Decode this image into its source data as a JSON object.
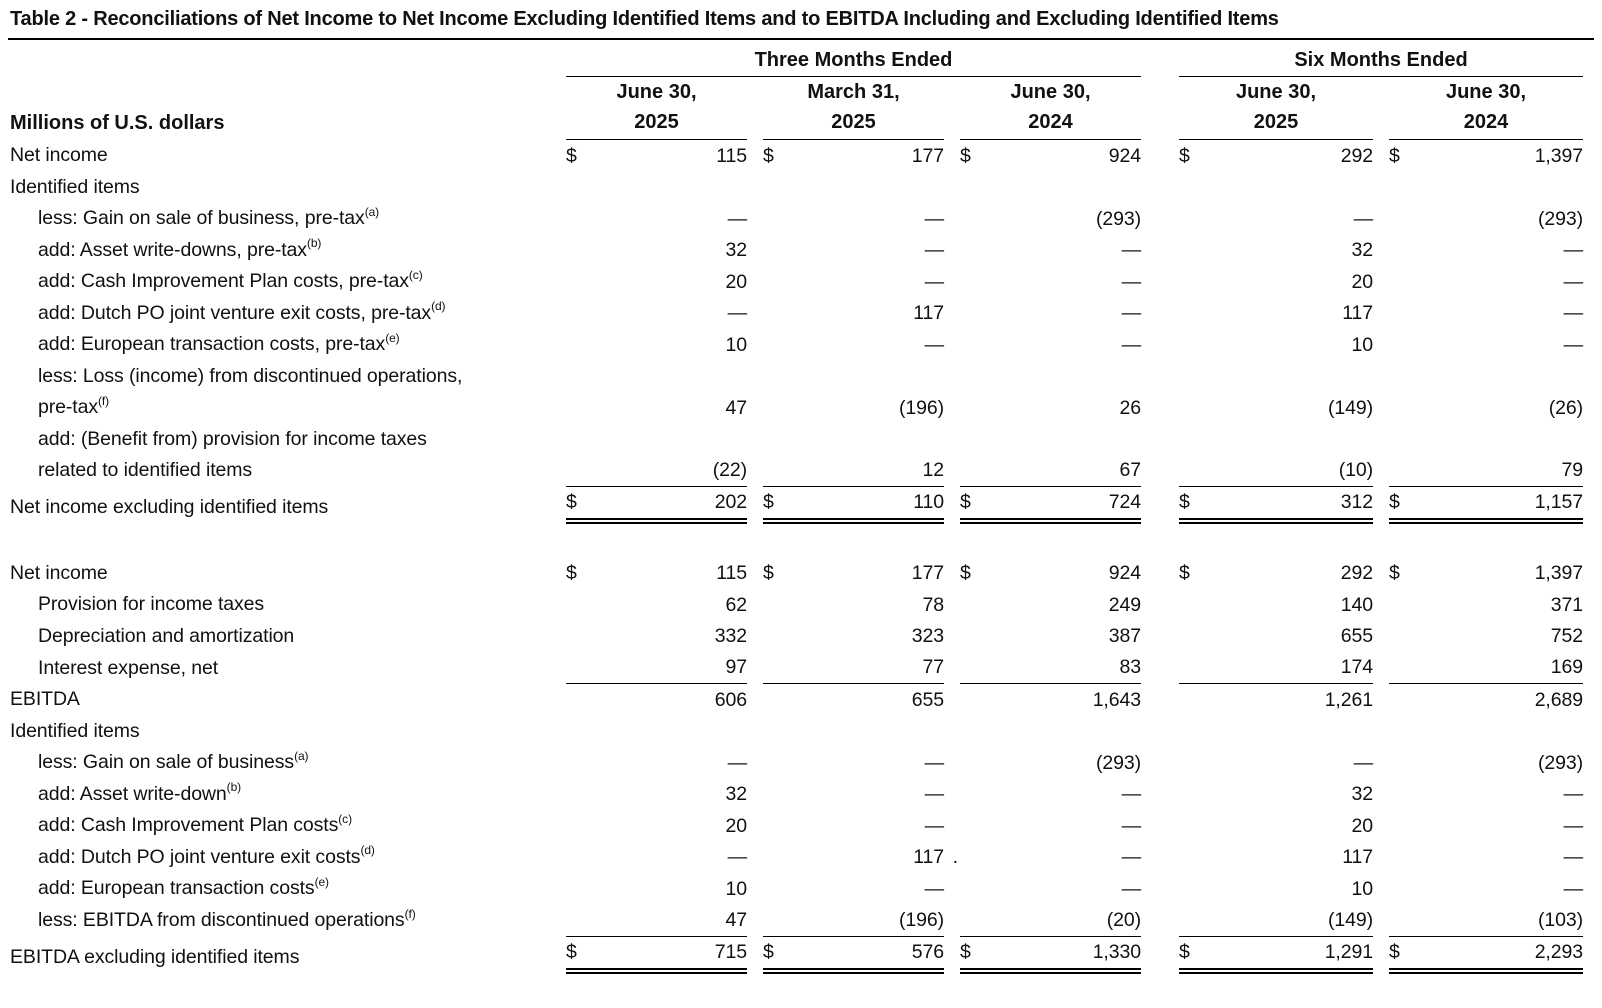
{
  "title": "Table 2 - Reconciliations of Net Income to Net Income Excluding Identified Items and to EBITDA Including and Excluding Identified Items",
  "row_header_label": "Millions of U.S. dollars",
  "currency_symbol": "$",
  "em_dash": "—",
  "column_groups": [
    {
      "label": "Three Months Ended",
      "span": 3
    },
    {
      "label": "Six Months Ended",
      "span": 2
    }
  ],
  "columns": [
    {
      "line1": "June 30,",
      "line2": "2025"
    },
    {
      "line1": "March 31,",
      "line2": "2025"
    },
    {
      "line1": "June 30,",
      "line2": "2024"
    },
    {
      "line1": "June 30,",
      "line2": "2025"
    },
    {
      "line1": "June 30,",
      "line2": "2024"
    }
  ],
  "sections": [
    {
      "rows": [
        {
          "label": "Net income",
          "dollar": true,
          "values": [
            "115",
            "177",
            "924",
            "292",
            "1,397"
          ]
        },
        {
          "label": "Identified items",
          "values": null
        },
        {
          "label": "less: Gain on sale of business, pre-tax",
          "sup": "(a)",
          "indent": true,
          "values": [
            "—",
            "—",
            "(293)",
            "—",
            "(293)"
          ]
        },
        {
          "label": "add: Asset write-downs, pre-tax",
          "sup": "(b)",
          "indent": true,
          "values": [
            "32",
            "—",
            "—",
            "32",
            "—"
          ]
        },
        {
          "label": "add: Cash Improvement Plan costs, pre-tax",
          "sup": "(c)",
          "indent": true,
          "values": [
            "20",
            "—",
            "—",
            "20",
            "—"
          ]
        },
        {
          "label": "add: Dutch PO joint venture exit costs, pre-tax",
          "sup": "(d)",
          "indent": true,
          "values": [
            "—",
            "117",
            "—",
            "117",
            "—"
          ]
        },
        {
          "label": "add: European transaction costs, pre-tax",
          "sup": "(e)",
          "indent": true,
          "values": [
            "10",
            "—",
            "—",
            "10",
            "—"
          ]
        },
        {
          "label": "less: Loss (income) from discontinued operations,",
          "label2": "pre-tax",
          "sup2": "(f)",
          "indent": true,
          "values": [
            "47",
            "(196)",
            "26",
            "(149)",
            "(26)"
          ]
        },
        {
          "label": "add: (Benefit from) provision for income taxes",
          "label2": "related to identified items",
          "indent": true,
          "values": [
            "(22)",
            "12",
            "67",
            "(10)",
            "79"
          ],
          "underline": "single"
        },
        {
          "label": "Net income excluding identified items",
          "dollar": true,
          "values": [
            "202",
            "110",
            "724",
            "312",
            "1,157"
          ],
          "underline": "double"
        }
      ]
    },
    {
      "rows": [
        {
          "label": "Net income",
          "dollar": true,
          "values": [
            "115",
            "177",
            "924",
            "292",
            "1,397"
          ]
        },
        {
          "label": "Provision for income taxes",
          "indent": true,
          "values": [
            "62",
            "78",
            "249",
            "140",
            "371"
          ]
        },
        {
          "label": "Depreciation and amortization",
          "indent": true,
          "values": [
            "332",
            "323",
            "387",
            "655",
            "752"
          ]
        },
        {
          "label": "Interest expense, net",
          "indent": true,
          "values": [
            "97",
            "77",
            "83",
            "174",
            "169"
          ],
          "underline": "single"
        },
        {
          "label": "EBITDA",
          "values": [
            "606",
            "655",
            "1,643",
            "1,261",
            "2,689"
          ]
        },
        {
          "label": "Identified items",
          "values": null
        },
        {
          "label": "less: Gain on sale of business",
          "sup": "(a)",
          "indent": true,
          "values": [
            "—",
            "—",
            "(293)",
            "—",
            "(293)"
          ]
        },
        {
          "label": "add: Asset write-down",
          "sup": "(b)",
          "indent": true,
          "values": [
            "32",
            "—",
            "—",
            "32",
            "—"
          ]
        },
        {
          "label": "add: Cash Improvement Plan costs",
          "sup": "(c)",
          "indent": true,
          "values": [
            "20",
            "—",
            "—",
            "20",
            "—"
          ]
        },
        {
          "label": "add: Dutch PO joint venture exit costs",
          "sup": "(d)",
          "indent": true,
          "values": [
            "—",
            "117",
            "—",
            "117",
            "—"
          ],
          "stray": {
            "col": 1,
            "text": "."
          }
        },
        {
          "label": "add: European transaction costs",
          "sup": "(e)",
          "indent": true,
          "values": [
            "10",
            "—",
            "—",
            "10",
            "—"
          ]
        },
        {
          "label": "less: EBITDA from discontinued operations",
          "sup": "(f)",
          "indent": true,
          "values": [
            "47",
            "(196)",
            "(20)",
            "(149)",
            "(103)"
          ],
          "underline": "single"
        },
        {
          "label": "EBITDA excluding identified items",
          "dollar": true,
          "values": [
            "715",
            "576",
            "1,330",
            "1,291",
            "2,293"
          ],
          "underline": "double"
        }
      ]
    }
  ]
}
